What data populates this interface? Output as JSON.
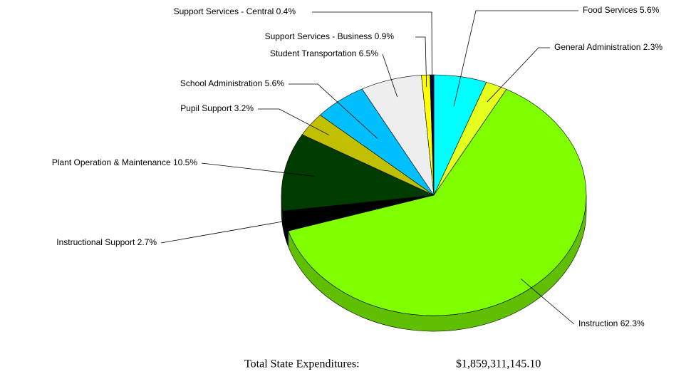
{
  "chart_data": {
    "type": "pie",
    "categories": [
      "Food Services",
      "General Administration",
      "Instruction",
      "Instructional Support",
      "Plant Operation & Maintenance",
      "Pupil Support",
      "School Administration",
      "Student Transportation",
      "Support Services - Business",
      "Support Services - Central"
    ],
    "values": [
      5.6,
      2.3,
      62.3,
      2.7,
      10.5,
      3.2,
      5.6,
      6.5,
      0.9,
      0.4
    ],
    "value_labels": [
      "5.6%",
      "2.3%",
      "62.3%",
      "2.7%",
      "10.5%",
      "3.2%",
      "5.6%",
      "6.5%",
      "0.9%",
      "0.4%"
    ],
    "colors": [
      "#00ffff",
      "#e6ff1e",
      "#80ff00",
      "#000000",
      "#003c00",
      "#c0c000",
      "#00bfff",
      "#eeeeee",
      "#ffff00",
      "#000044"
    ],
    "footer": {
      "label": "Total State Expenditures:",
      "value": "$1,859,311,145.10"
    }
  }
}
